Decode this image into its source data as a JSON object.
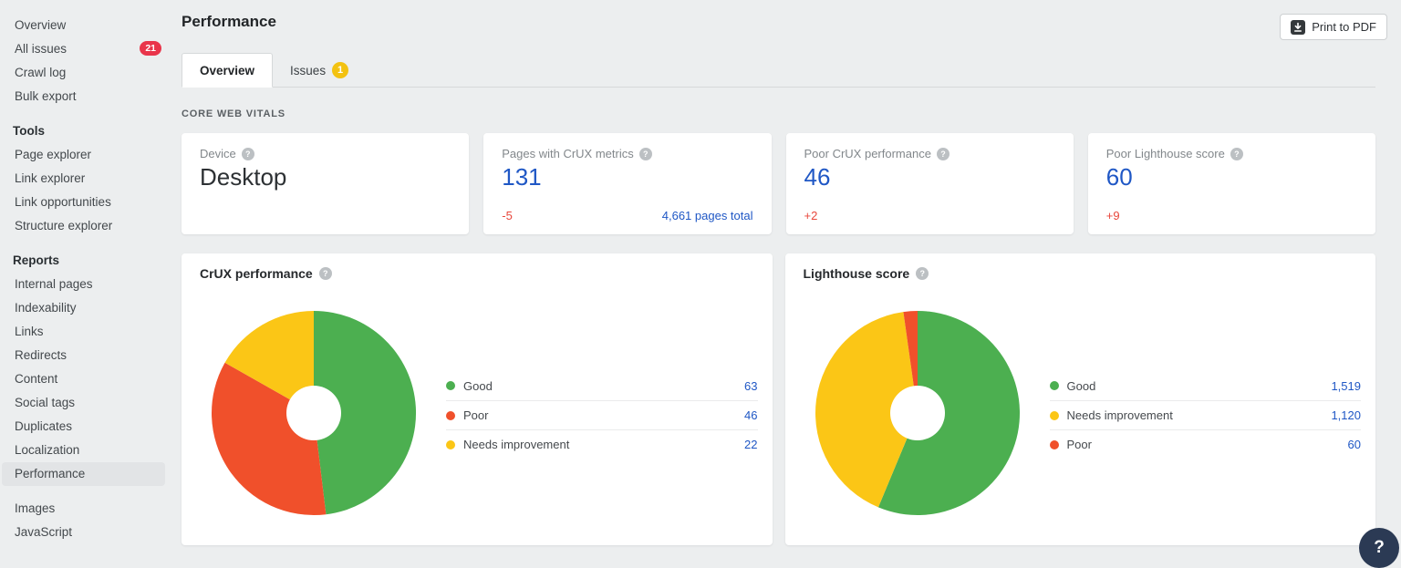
{
  "colors": {
    "accent_blue": "#1f57c5",
    "delta_red": "#e8473c",
    "good_green": "#4CAF50",
    "poor_red": "#F0502B",
    "needs_improvement_yellow": "#FBC616",
    "sidebar_badge_red": "#e9354b",
    "tab_badge_yellow": "#f3c211",
    "help_button_navy": "#2b3a54"
  },
  "sidebar": {
    "groups": [
      {
        "items": [
          {
            "label": "Overview"
          },
          {
            "label": "All issues",
            "badge": "21"
          },
          {
            "label": "Crawl log"
          },
          {
            "label": "Bulk export"
          }
        ]
      },
      {
        "title": "Tools",
        "items": [
          {
            "label": "Page explorer"
          },
          {
            "label": "Link explorer"
          },
          {
            "label": "Link opportunities"
          },
          {
            "label": "Structure explorer"
          }
        ]
      },
      {
        "title": "Reports",
        "items": [
          {
            "label": "Internal pages"
          },
          {
            "label": "Indexability"
          },
          {
            "label": "Links"
          },
          {
            "label": "Redirects"
          },
          {
            "label": "Content"
          },
          {
            "label": "Social tags"
          },
          {
            "label": "Duplicates"
          },
          {
            "label": "Localization"
          },
          {
            "label": "Performance",
            "selected": true
          }
        ]
      },
      {
        "items": [
          {
            "label": "Images"
          },
          {
            "label": "JavaScript"
          }
        ]
      }
    ]
  },
  "header": {
    "title": "Performance",
    "print_button": "Print to PDF"
  },
  "tabs": [
    {
      "label": "Overview",
      "active": true
    },
    {
      "label": "Issues",
      "badge": "1"
    }
  ],
  "section_label": "CORE WEB VITALS",
  "metric_cards": [
    {
      "label": "Device",
      "value": "Desktop",
      "value_style": "dark"
    },
    {
      "label": "Pages with CrUX metrics",
      "value": "131",
      "value_style": "blue",
      "delta": "-5",
      "extra": "4,661 pages total"
    },
    {
      "label": "Poor CrUX performance",
      "value": "46",
      "value_style": "blue",
      "delta": "+2"
    },
    {
      "label": "Poor Lighthouse score",
      "value": "60",
      "value_style": "blue",
      "delta": "+9"
    }
  ],
  "chart_data": [
    {
      "type": "pie",
      "title": "CrUX performance",
      "legend_position": "right",
      "segments": [
        {
          "label": "Good",
          "value": 63,
          "display": "63",
          "color": "#4CAF50"
        },
        {
          "label": "Poor",
          "value": 46,
          "display": "46",
          "color": "#F0502B"
        },
        {
          "label": "Needs improvement",
          "value": 22,
          "display": "22",
          "color": "#FBC616"
        }
      ]
    },
    {
      "type": "pie",
      "title": "Lighthouse score",
      "legend_position": "right",
      "segments": [
        {
          "label": "Good",
          "value": 1519,
          "display": "1,519",
          "color": "#4CAF50"
        },
        {
          "label": "Needs improvement",
          "value": 1120,
          "display": "1,120",
          "color": "#FBC616"
        },
        {
          "label": "Poor",
          "value": 60,
          "display": "60",
          "color": "#F0502B"
        }
      ]
    }
  ],
  "help_button": "?"
}
